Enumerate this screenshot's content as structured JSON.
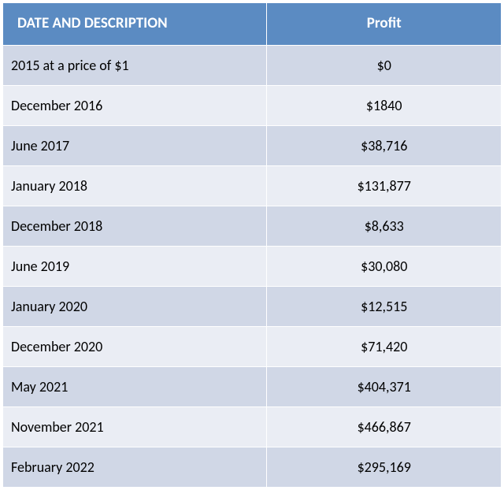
{
  "table": {
    "header_bg": "#5b8bc2",
    "row_alt_bg": [
      "#d0d7e6",
      "#eaedf4"
    ],
    "header_text_color": "#ffffff",
    "cell_text_color": "#000000",
    "border_color": "#ffffff",
    "header_fontsize": 19,
    "header_fontweight": 700,
    "cell_fontsize": 18,
    "columns": [
      {
        "label": "DATE AND DESCRIPTION",
        "align": "left",
        "width_pct": 53
      },
      {
        "label": "Profit",
        "align": "center",
        "width_pct": 47
      }
    ],
    "rows": [
      [
        "2015 at a price of $1",
        "$0"
      ],
      [
        "December 2016",
        "$1840"
      ],
      [
        "June 2017",
        "$38,716"
      ],
      [
        "January 2018",
        "$131,877"
      ],
      [
        "December 2018",
        "$8,633"
      ],
      [
        "June 2019",
        "$30,080"
      ],
      [
        "January 2020",
        "$12,515"
      ],
      [
        "December 2020",
        "$71,420"
      ],
      [
        "May 2021",
        "$404,371"
      ],
      [
        "November 2021",
        "$466,867"
      ],
      [
        "February 2022",
        "$295,169"
      ]
    ]
  }
}
